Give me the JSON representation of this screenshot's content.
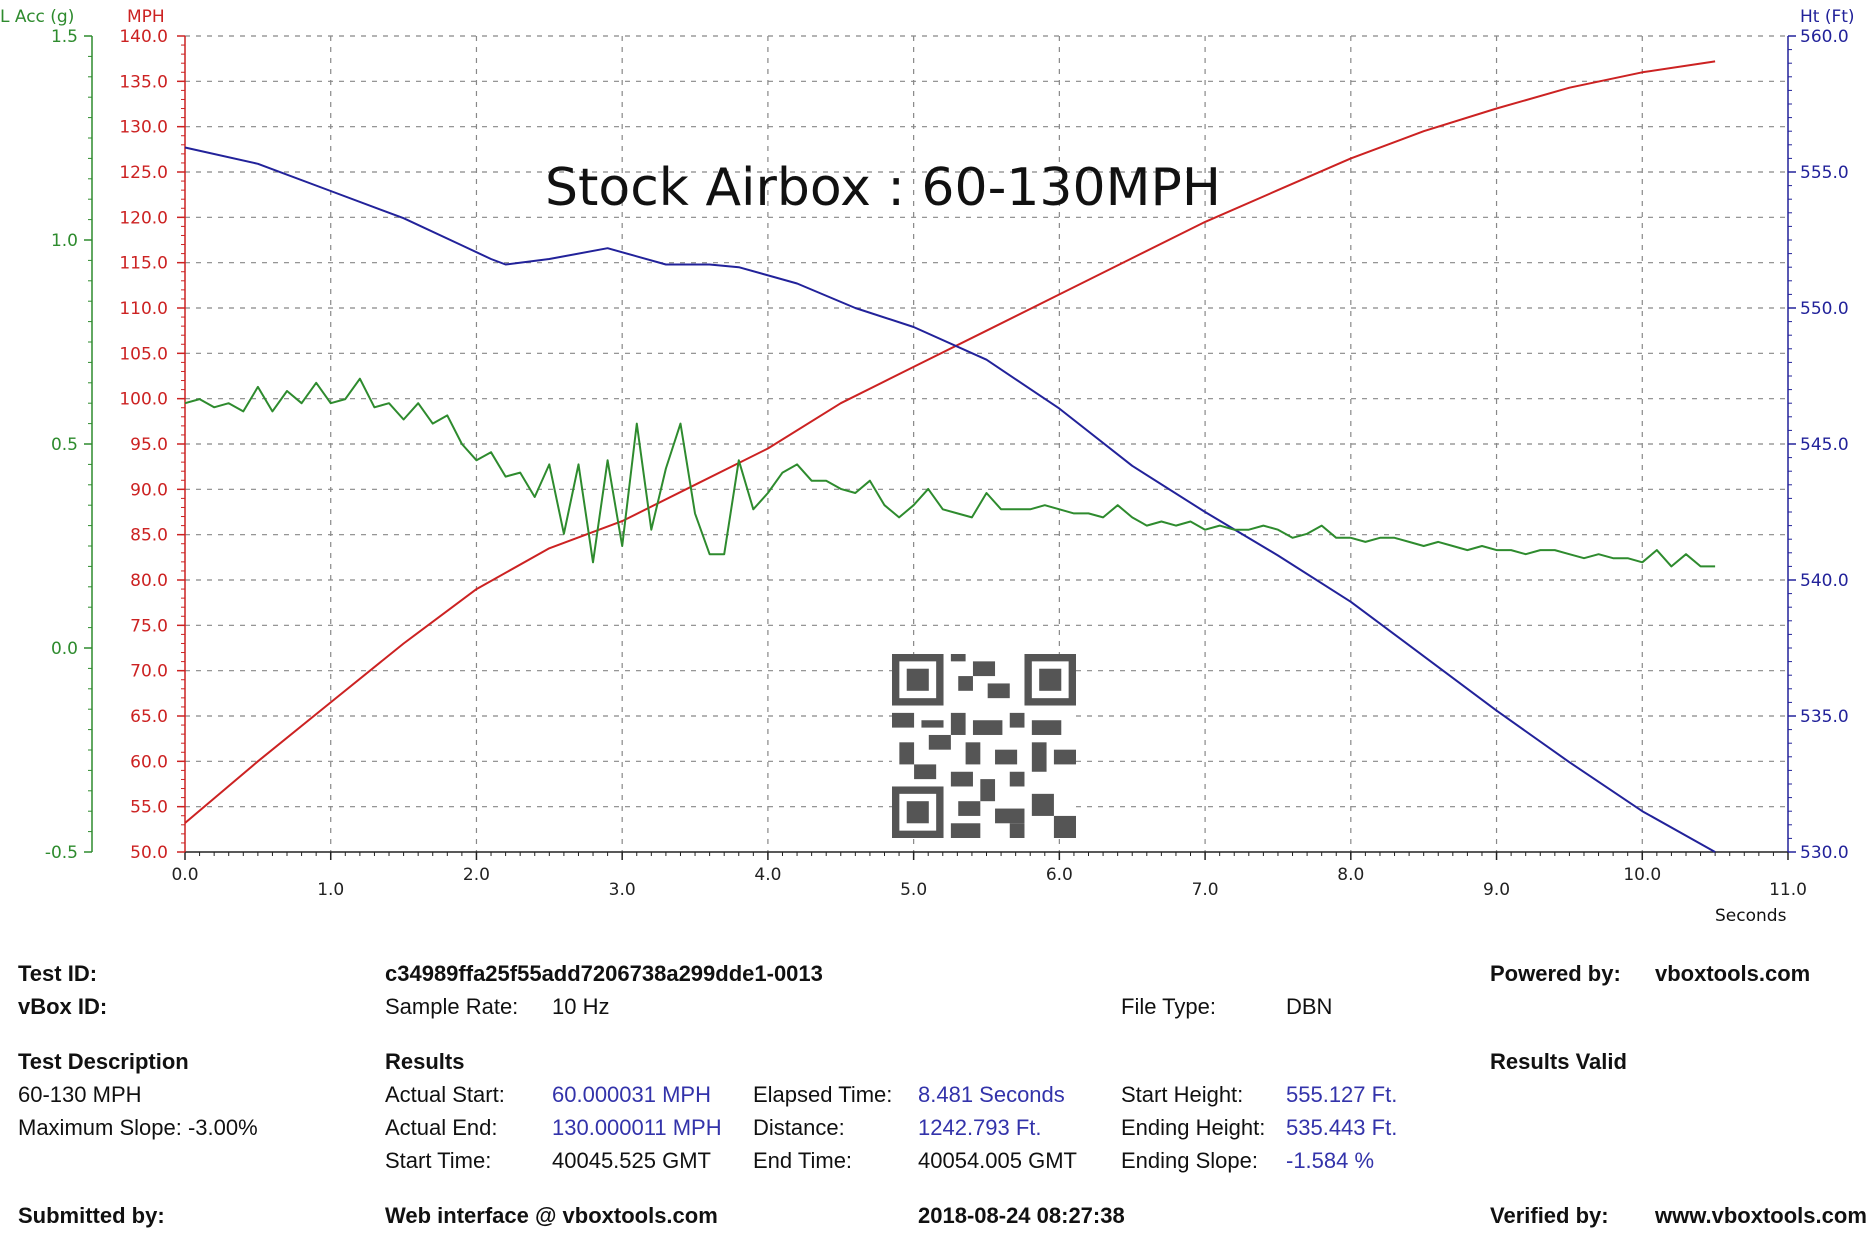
{
  "chart_data": {
    "type": "line",
    "title": "Stock Airbox : 60-130MPH",
    "xlabel": "Seconds",
    "xlim": [
      0,
      11
    ],
    "x_ticks": [
      "0.0",
      "1.0",
      "2.0",
      "3.0",
      "4.0",
      "5.0",
      "6.0",
      "7.0",
      "8.0",
      "9.0",
      "10.0",
      "11.0"
    ],
    "axes": {
      "lacc": {
        "label": "L Acc (g)",
        "color": "#2e8b2e",
        "ylim": [
          -0.5,
          1.5
        ],
        "ticks": [
          "-0.5",
          "0.0",
          "0.5",
          "1.0",
          "1.5"
        ]
      },
      "mph": {
        "label": "MPH",
        "color": "#cc2222",
        "ylim": [
          50,
          140
        ],
        "ticks": [
          "50.0",
          "55.0",
          "60.0",
          "65.0",
          "70.0",
          "75.0",
          "80.0",
          "85.0",
          "90.0",
          "95.0",
          "100.0",
          "105.0",
          "110.0",
          "115.0",
          "120.0",
          "125.0",
          "130.0",
          "135.0",
          "140.0"
        ]
      },
      "ht": {
        "label": "Ht (Ft)",
        "color": "#22229a",
        "ylim": [
          530,
          560
        ],
        "ticks": [
          "530.0",
          "535.0",
          "540.0",
          "545.0",
          "550.0",
          "555.0",
          "560.0"
        ]
      }
    },
    "series": [
      {
        "axis": "mph",
        "color": "#cc2222",
        "x": [
          0,
          0.5,
          1.0,
          1.5,
          2.0,
          2.5,
          3.0,
          3.5,
          4.0,
          4.5,
          5.0,
          5.5,
          6.0,
          6.5,
          7.0,
          7.5,
          8.0,
          8.5,
          9.0,
          9.5,
          10.0,
          10.5
        ],
        "y": [
          53.2,
          60,
          66.5,
          73,
          79,
          83.5,
          86.5,
          90.5,
          94.5,
          99.5,
          103.5,
          107.5,
          111.5,
          115.5,
          119.5,
          123,
          126.5,
          129.5,
          132,
          134.3,
          136,
          137.2
        ]
      },
      {
        "axis": "ht",
        "color": "#22229a",
        "x": [
          0,
          0.5,
          1.0,
          1.5,
          1.9,
          2.1,
          2.2,
          2.5,
          2.9,
          3.3,
          3.6,
          3.8,
          4.2,
          4.6,
          5.0,
          5.5,
          6.0,
          6.5,
          7.0,
          7.5,
          8.0,
          8.5,
          9.0,
          9.5,
          10.0,
          10.5
        ],
        "y": [
          555.9,
          555.3,
          554.3,
          553.3,
          552.3,
          551.8,
          551.6,
          551.8,
          552.2,
          551.6,
          551.6,
          551.5,
          550.9,
          550.0,
          549.3,
          548.1,
          546.3,
          544.2,
          542.5,
          540.9,
          539.2,
          537.2,
          535.2,
          533.3,
          531.5,
          530.0
        ]
      },
      {
        "axis": "lacc",
        "color": "#2e8b2e",
        "x": [
          0.0,
          0.1,
          0.2,
          0.3,
          0.4,
          0.5,
          0.6,
          0.7,
          0.8,
          0.9,
          1.0,
          1.1,
          1.2,
          1.3,
          1.4,
          1.5,
          1.6,
          1.7,
          1.8,
          1.9,
          2.0,
          2.1,
          2.2,
          2.3,
          2.4,
          2.5,
          2.6,
          2.7,
          2.8,
          2.9,
          3.0,
          3.1,
          3.2,
          3.3,
          3.4,
          3.5,
          3.6,
          3.7,
          3.8,
          3.9,
          4.0,
          4.1,
          4.2,
          4.3,
          4.4,
          4.5,
          4.6,
          4.7,
          4.8,
          4.9,
          5.0,
          5.1,
          5.2,
          5.3,
          5.4,
          5.5,
          5.6,
          5.7,
          5.8,
          5.9,
          6.0,
          6.1,
          6.2,
          6.3,
          6.4,
          6.5,
          6.6,
          6.7,
          6.8,
          6.9,
          7.0,
          7.1,
          7.2,
          7.3,
          7.4,
          7.5,
          7.6,
          7.7,
          7.8,
          7.9,
          8.0,
          8.1,
          8.2,
          8.3,
          8.4,
          8.5,
          8.6,
          8.7,
          8.8,
          8.9,
          9.0,
          9.1,
          9.2,
          9.3,
          9.4,
          9.5,
          9.6,
          9.7,
          9.8,
          9.9,
          10.0,
          10.1,
          10.2,
          10.3,
          10.4,
          10.5
        ],
        "y": [
          0.6,
          0.61,
          0.59,
          0.6,
          0.58,
          0.64,
          0.58,
          0.63,
          0.6,
          0.65,
          0.6,
          0.61,
          0.66,
          0.59,
          0.6,
          0.56,
          0.6,
          0.55,
          0.57,
          0.5,
          0.46,
          0.48,
          0.42,
          0.43,
          0.37,
          0.45,
          0.28,
          0.45,
          0.21,
          0.46,
          0.25,
          0.55,
          0.29,
          0.44,
          0.55,
          0.33,
          0.23,
          0.23,
          0.46,
          0.34,
          0.38,
          0.43,
          0.45,
          0.41,
          0.41,
          0.39,
          0.38,
          0.41,
          0.35,
          0.32,
          0.35,
          0.39,
          0.34,
          0.33,
          0.32,
          0.38,
          0.34,
          0.34,
          0.34,
          0.35,
          0.34,
          0.33,
          0.33,
          0.32,
          0.35,
          0.32,
          0.3,
          0.31,
          0.3,
          0.31,
          0.29,
          0.3,
          0.29,
          0.29,
          0.3,
          0.29,
          0.27,
          0.28,
          0.3,
          0.27,
          0.27,
          0.26,
          0.27,
          0.27,
          0.26,
          0.25,
          0.26,
          0.25,
          0.24,
          0.25,
          0.24,
          0.24,
          0.23,
          0.24,
          0.24,
          0.23,
          0.22,
          0.23,
          0.22,
          0.22,
          0.21,
          0.24,
          0.2,
          0.23,
          0.2,
          0.2
        ]
      }
    ]
  },
  "info": {
    "test_id_label": "Test ID:",
    "test_id_value": "c34989ffa25f55add7206738a299dde1-0013",
    "powered_by_label": "Powered by:",
    "powered_by_value": "vboxtools.com",
    "vbox_id_label": "vBox ID:",
    "sample_rate_label": "Sample Rate:",
    "sample_rate_value": "10 Hz",
    "file_type_label": "File Type:",
    "file_type_value": "DBN",
    "test_description_label": "Test Description",
    "test_description_value": "60-130 MPH",
    "max_slope": "Maximum Slope:  -3.00%",
    "results_label": "Results",
    "results_valid": "Results Valid",
    "actual_start_label": "Actual Start:",
    "actual_start_value": "60.000031 MPH",
    "elapsed_label": "Elapsed Time:",
    "elapsed_value": "8.481 Seconds",
    "start_height_label": "Start Height:",
    "start_height_value": "555.127 Ft.",
    "actual_end_label": "Actual End:",
    "actual_end_value": "130.000011 MPH",
    "distance_label": "Distance:",
    "distance_value": "1242.793 Ft.",
    "ending_height_label": "Ending Height:",
    "ending_height_value": "535.443 Ft.",
    "start_time_label": "Start Time:",
    "start_time_value": "40045.525 GMT",
    "end_time_label": "End Time:",
    "end_time_value": "40054.005 GMT",
    "ending_slope_label": "Ending Slope:",
    "ending_slope_value": "-1.584 %",
    "submitted_label": "Submitted by:",
    "web_interface": "Web interface @ vboxtools.com",
    "date": "2018-08-24 08:27:38",
    "verified_label": "Verified by:",
    "verified_value": "www.vboxtools.com"
  }
}
